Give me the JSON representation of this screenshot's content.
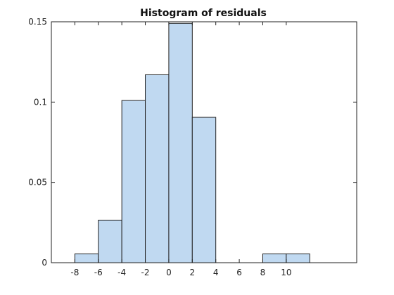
{
  "chart_data": {
    "type": "bar",
    "title": "Histogram of residuals",
    "xlabel": "",
    "ylabel": "",
    "bin_width": 2,
    "bins": [
      {
        "start": -8,
        "end": -6,
        "value": 0.0055
      },
      {
        "start": -6,
        "end": -4,
        "value": 0.0265
      },
      {
        "start": -4,
        "end": -2,
        "value": 0.101
      },
      {
        "start": -2,
        "end": 0,
        "value": 0.117
      },
      {
        "start": 0,
        "end": 2,
        "value": 0.149
      },
      {
        "start": 2,
        "end": 4,
        "value": 0.0905
      },
      {
        "start": 4,
        "end": 6,
        "value": 0
      },
      {
        "start": 6,
        "end": 8,
        "value": 0
      },
      {
        "start": 8,
        "end": 10,
        "value": 0.0055
      },
      {
        "start": 10,
        "end": 12,
        "value": 0.0055
      }
    ],
    "xlim": [
      -10,
      16
    ],
    "ylim": [
      0,
      0.15
    ],
    "xticks": [
      -8,
      -6,
      -4,
      -2,
      0,
      2,
      4,
      6,
      8,
      10
    ],
    "xtick_labels": [
      "-8",
      "-6",
      "-4",
      "-2",
      "0",
      "2",
      "4",
      "6",
      "8",
      "10"
    ],
    "yticks": [
      0,
      0.05,
      0.1,
      0.15
    ],
    "ytick_labels": [
      "0",
      "0.05",
      "0.1",
      "0.15"
    ],
    "grid": false,
    "colors": {
      "bar_fill": "#c0d9f1",
      "bar_edge": "#222222",
      "axis": "#222222"
    }
  }
}
